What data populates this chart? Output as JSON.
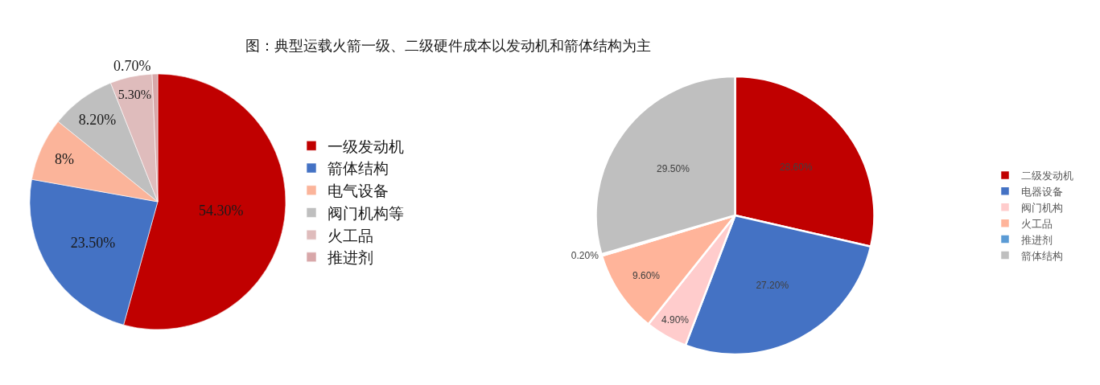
{
  "chart_data": [
    {
      "type": "pie",
      "title": "图：典型运载火箭一级、二级硬件成本以发动机和箭体结构为主",
      "categories": [
        "一级发动机",
        "箭体结构",
        "电气设备",
        "阀门机构等",
        "火工品",
        "推进剂"
      ],
      "values": [
        54.3,
        23.5,
        8,
        8.2,
        5.3,
        0.7
      ],
      "colors": [
        "#c00000",
        "#4472c4",
        "#fbb49a",
        "#bfbfbf",
        "#dfbcbc",
        "#d8a7a9"
      ],
      "value_labels": [
        "54.30%",
        "23.50%",
        "8%",
        "8.20%",
        "5.30%",
        "0.70%"
      ],
      "legend": "right"
    },
    {
      "type": "pie",
      "categories": [
        "二级发动机",
        "电器设备",
        "阀门机构",
        "火工品",
        "推进剂",
        "箭体结构"
      ],
      "values": [
        28.6,
        27.2,
        4.9,
        9.6,
        0.2,
        29.5
      ],
      "colors": [
        "#c00000",
        "#4472c4",
        "#ffcccc",
        "#ffb49a",
        "#5b9bd5",
        "#bfbfbf"
      ],
      "value_labels": [
        "28.60%",
        "27.20%",
        "4.90%",
        "9.60%",
        "0.20%",
        "29.50%"
      ],
      "legend": "right"
    }
  ]
}
